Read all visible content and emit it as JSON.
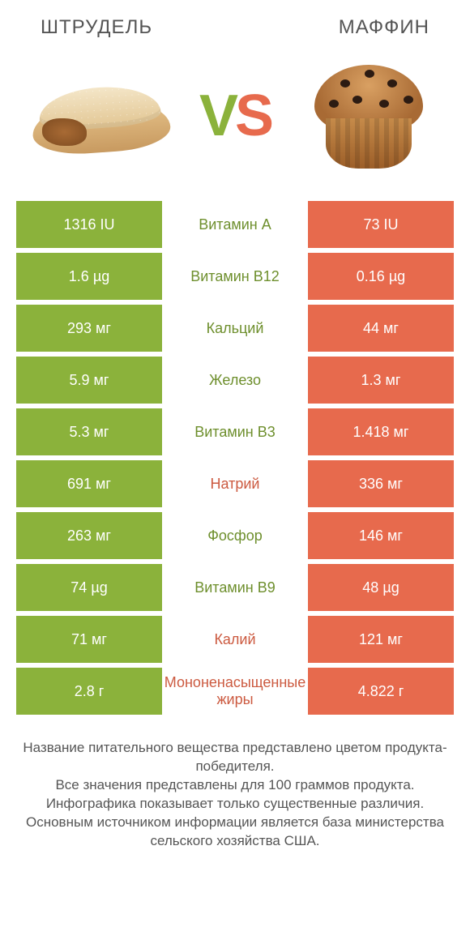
{
  "titles": {
    "left": "ШТРУДЕЛЬ",
    "right": "МАФФИН"
  },
  "vs": {
    "v": "V",
    "s": "S"
  },
  "colors": {
    "green": "#8bb23b",
    "orange": "#e76a4d",
    "label_green": "#6e8f2d",
    "label_orange": "#cc5a40"
  },
  "rows": [
    {
      "left": "1316 IU",
      "label": "Витамин A",
      "right": "73 IU",
      "winner": "left"
    },
    {
      "left": "1.6 µg",
      "label": "Витамин B12",
      "right": "0.16 µg",
      "winner": "left"
    },
    {
      "left": "293 мг",
      "label": "Кальций",
      "right": "44 мг",
      "winner": "left"
    },
    {
      "left": "5.9 мг",
      "label": "Железо",
      "right": "1.3 мг",
      "winner": "left"
    },
    {
      "left": "5.3 мг",
      "label": "Витамин B3",
      "right": "1.418 мг",
      "winner": "left"
    },
    {
      "left": "691 мг",
      "label": "Натрий",
      "right": "336 мг",
      "winner": "right"
    },
    {
      "left": "263 мг",
      "label": "Фосфор",
      "right": "146 мг",
      "winner": "left"
    },
    {
      "left": "74 µg",
      "label": "Витамин B9",
      "right": "48 µg",
      "winner": "left"
    },
    {
      "left": "71 мг",
      "label": "Калий",
      "right": "121 мг",
      "winner": "right"
    },
    {
      "left": "2.8 г",
      "label": "Мононенасыщенные жиры",
      "right": "4.822 г",
      "winner": "right"
    }
  ],
  "footer": "Название питательного вещества представлено цветом продукта-победителя.\nВсе значения представлены для 100 граммов продукта.\nИнфографика показывает только существенные различия.\nОсновным источником информации является база министерства сельского хозяйства США."
}
